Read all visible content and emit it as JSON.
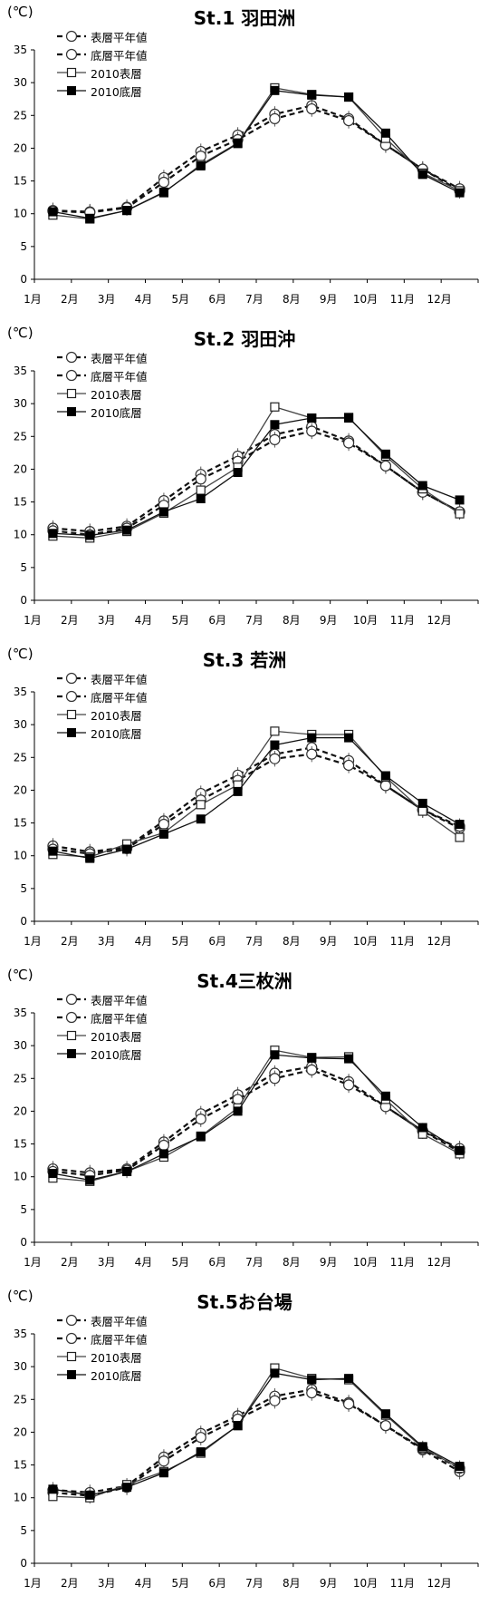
{
  "charts": [
    {
      "title": "St.1 羽田洲",
      "unit": "(℃)",
      "legend": [
        "表層平年値",
        "底層平年値",
        "2010表層",
        "2010底層"
      ],
      "chart_data": {
        "type": "line",
        "categories": [
          "1月",
          "2月",
          "3月",
          "4月",
          "5月",
          "6月",
          "7月",
          "8月",
          "9月",
          "10月",
          "11月",
          "12月"
        ],
        "ylim": [
          0,
          35
        ],
        "y_ticks": [
          0,
          5,
          10,
          15,
          20,
          25,
          30,
          35
        ],
        "series": [
          {
            "name": "表層平年値",
            "values": [
              10.5,
              10.3,
              11.0,
              15.5,
              19.5,
              22.0,
              25.2,
              26.5,
              24.5,
              20.5,
              16.8,
              13.5
            ]
          },
          {
            "name": "底層平年値",
            "values": [
              10.4,
              10.2,
              10.9,
              14.8,
              18.8,
              21.3,
              24.5,
              26.0,
              24.2,
              20.5,
              16.8,
              13.8
            ]
          },
          {
            "name": "2010表層",
            "values": [
              9.8,
              9.2,
              10.5,
              13.2,
              17.5,
              20.8,
              29.2,
              28.2,
              27.8,
              21.5,
              16.2,
              13.5
            ]
          },
          {
            "name": "2010底層",
            "values": [
              10.3,
              9.3,
              10.5,
              13.3,
              17.3,
              20.7,
              28.8,
              28.1,
              27.8,
              22.3,
              16.0,
              13.2
            ]
          }
        ]
      }
    },
    {
      "title": "St.2 羽田沖",
      "unit": "(℃)",
      "legend": [
        "表層平年値",
        "底層平年値",
        "2010表層",
        "2010底層"
      ],
      "chart_data": {
        "type": "line",
        "categories": [
          "1月",
          "2月",
          "3月",
          "4月",
          "5月",
          "6月",
          "7月",
          "8月",
          "9月",
          "10月",
          "11月",
          "12月"
        ],
        "ylim": [
          0,
          35
        ],
        "y_ticks": [
          0,
          5,
          10,
          15,
          20,
          25,
          30,
          35
        ],
        "series": [
          {
            "name": "表層平年値",
            "values": [
              11.0,
              10.5,
              11.3,
              15.2,
              19.2,
              22.0,
              25.3,
              26.5,
              24.3,
              20.5,
              16.5,
              13.5
            ]
          },
          {
            "name": "底層平年値",
            "values": [
              10.6,
              10.0,
              11.0,
              14.5,
              18.5,
              21.2,
              24.5,
              25.8,
              24.0,
              20.5,
              16.5,
              13.5
            ]
          },
          {
            "name": "2010表層",
            "values": [
              9.8,
              9.5,
              10.5,
              13.3,
              16.8,
              20.3,
              29.5,
              27.8,
              27.9,
              22.0,
              17.0,
              13.2
            ]
          },
          {
            "name": "2010底層",
            "values": [
              10.2,
              9.9,
              10.7,
              13.5,
              15.5,
              19.5,
              26.8,
              27.8,
              27.8,
              22.3,
              17.5,
              15.3
            ]
          }
        ]
      }
    },
    {
      "title": "St.3 若洲",
      "unit": "(℃)",
      "legend": [
        "表層平年値",
        "底層平年値",
        "2010表層",
        "2010底層"
      ],
      "chart_data": {
        "type": "line",
        "categories": [
          "1月",
          "2月",
          "3月",
          "4月",
          "5月",
          "6月",
          "7月",
          "8月",
          "9月",
          "10月",
          "11月",
          "12月"
        ],
        "ylim": [
          0,
          35
        ],
        "y_ticks": [
          0,
          5,
          10,
          15,
          20,
          25,
          30,
          35
        ],
        "series": [
          {
            "name": "表層平年値",
            "values": [
              11.5,
              10.6,
              11.3,
              15.3,
              19.5,
              22.3,
              25.5,
              26.5,
              24.5,
              20.7,
              17.0,
              14.2
            ]
          },
          {
            "name": "底層平年値",
            "values": [
              11.0,
              10.3,
              11.1,
              14.8,
              18.5,
              21.5,
              24.8,
              25.5,
              23.8,
              20.7,
              17.0,
              14.5
            ]
          },
          {
            "name": "2010表層",
            "values": [
              10.2,
              9.8,
              11.8,
              13.5,
              17.8,
              20.8,
              29.0,
              28.5,
              28.5,
              22.0,
              16.8,
              12.8
            ]
          },
          {
            "name": "2010底層",
            "values": [
              10.7,
              9.6,
              11.0,
              13.3,
              15.6,
              19.8,
              26.9,
              28.0,
              28.0,
              22.2,
              18.0,
              14.8
            ]
          }
        ]
      }
    },
    {
      "title": "St.4三枚洲",
      "unit": "(℃)",
      "legend": [
        "表層平年値",
        "底層平年値",
        "2010表層",
        "2010底層"
      ],
      "chart_data": {
        "type": "line",
        "categories": [
          "1月",
          "2月",
          "3月",
          "4月",
          "5月",
          "6月",
          "7月",
          "8月",
          "9月",
          "10月",
          "11月",
          "12月"
        ],
        "ylim": [
          0,
          35
        ],
        "y_ticks": [
          0,
          5,
          10,
          15,
          20,
          25,
          30,
          35
        ],
        "series": [
          {
            "name": "表層平年値",
            "values": [
              11.2,
              10.6,
              11.2,
              15.3,
              19.6,
              22.5,
              25.8,
              26.8,
              24.5,
              20.7,
              17.0,
              14.3
            ]
          },
          {
            "name": "底層平年値",
            "values": [
              10.8,
              10.2,
              11.0,
              14.8,
              18.8,
              21.8,
              25.0,
              26.3,
              24.0,
              20.7,
              17.0,
              13.8
            ]
          },
          {
            "name": "2010表層",
            "values": [
              9.8,
              9.3,
              10.8,
              13.0,
              16.2,
              20.5,
              29.3,
              28.2,
              28.3,
              21.8,
              16.5,
              13.5
            ]
          },
          {
            "name": "2010底層",
            "values": [
              10.5,
              9.5,
              10.8,
              13.5,
              16.1,
              20.0,
              28.6,
              28.1,
              28.0,
              22.3,
              17.5,
              14.0
            ]
          }
        ]
      }
    },
    {
      "title": "St.5お台場",
      "unit": "(℃)",
      "legend": [
        "表層平年値",
        "底層平年値",
        "2010表層",
        "2010底層"
      ],
      "chart_data": {
        "type": "line",
        "categories": [
          "1月",
          "2月",
          "3月",
          "4月",
          "5月",
          "6月",
          "7月",
          "8月",
          "9月",
          "10月",
          "11月",
          "12月"
        ],
        "ylim": [
          0,
          35
        ],
        "y_ticks": [
          0,
          5,
          10,
          15,
          20,
          25,
          30,
          35
        ],
        "series": [
          {
            "name": "表層平年値",
            "values": [
              11.2,
              10.8,
              11.8,
              16.2,
              19.8,
              22.5,
              25.5,
              26.5,
              24.5,
              21.0,
              17.3,
              14.0
            ]
          },
          {
            "name": "底層平年値",
            "values": [
              10.8,
              10.3,
              11.6,
              15.6,
              19.2,
              22.0,
              24.8,
              26.0,
              24.3,
              21.0,
              17.5,
              14.5
            ]
          },
          {
            "name": "2010表層",
            "values": [
              10.2,
              10.0,
              12.0,
              14.0,
              16.8,
              21.0,
              29.8,
              28.2,
              28.0,
              22.6,
              17.6,
              14.5
            ]
          },
          {
            "name": "2010底層",
            "values": [
              11.3,
              10.4,
              11.6,
              13.8,
              17.0,
              21.0,
              29.0,
              28.0,
              28.2,
              22.8,
              17.8,
              14.8
            ]
          }
        ]
      }
    }
  ]
}
